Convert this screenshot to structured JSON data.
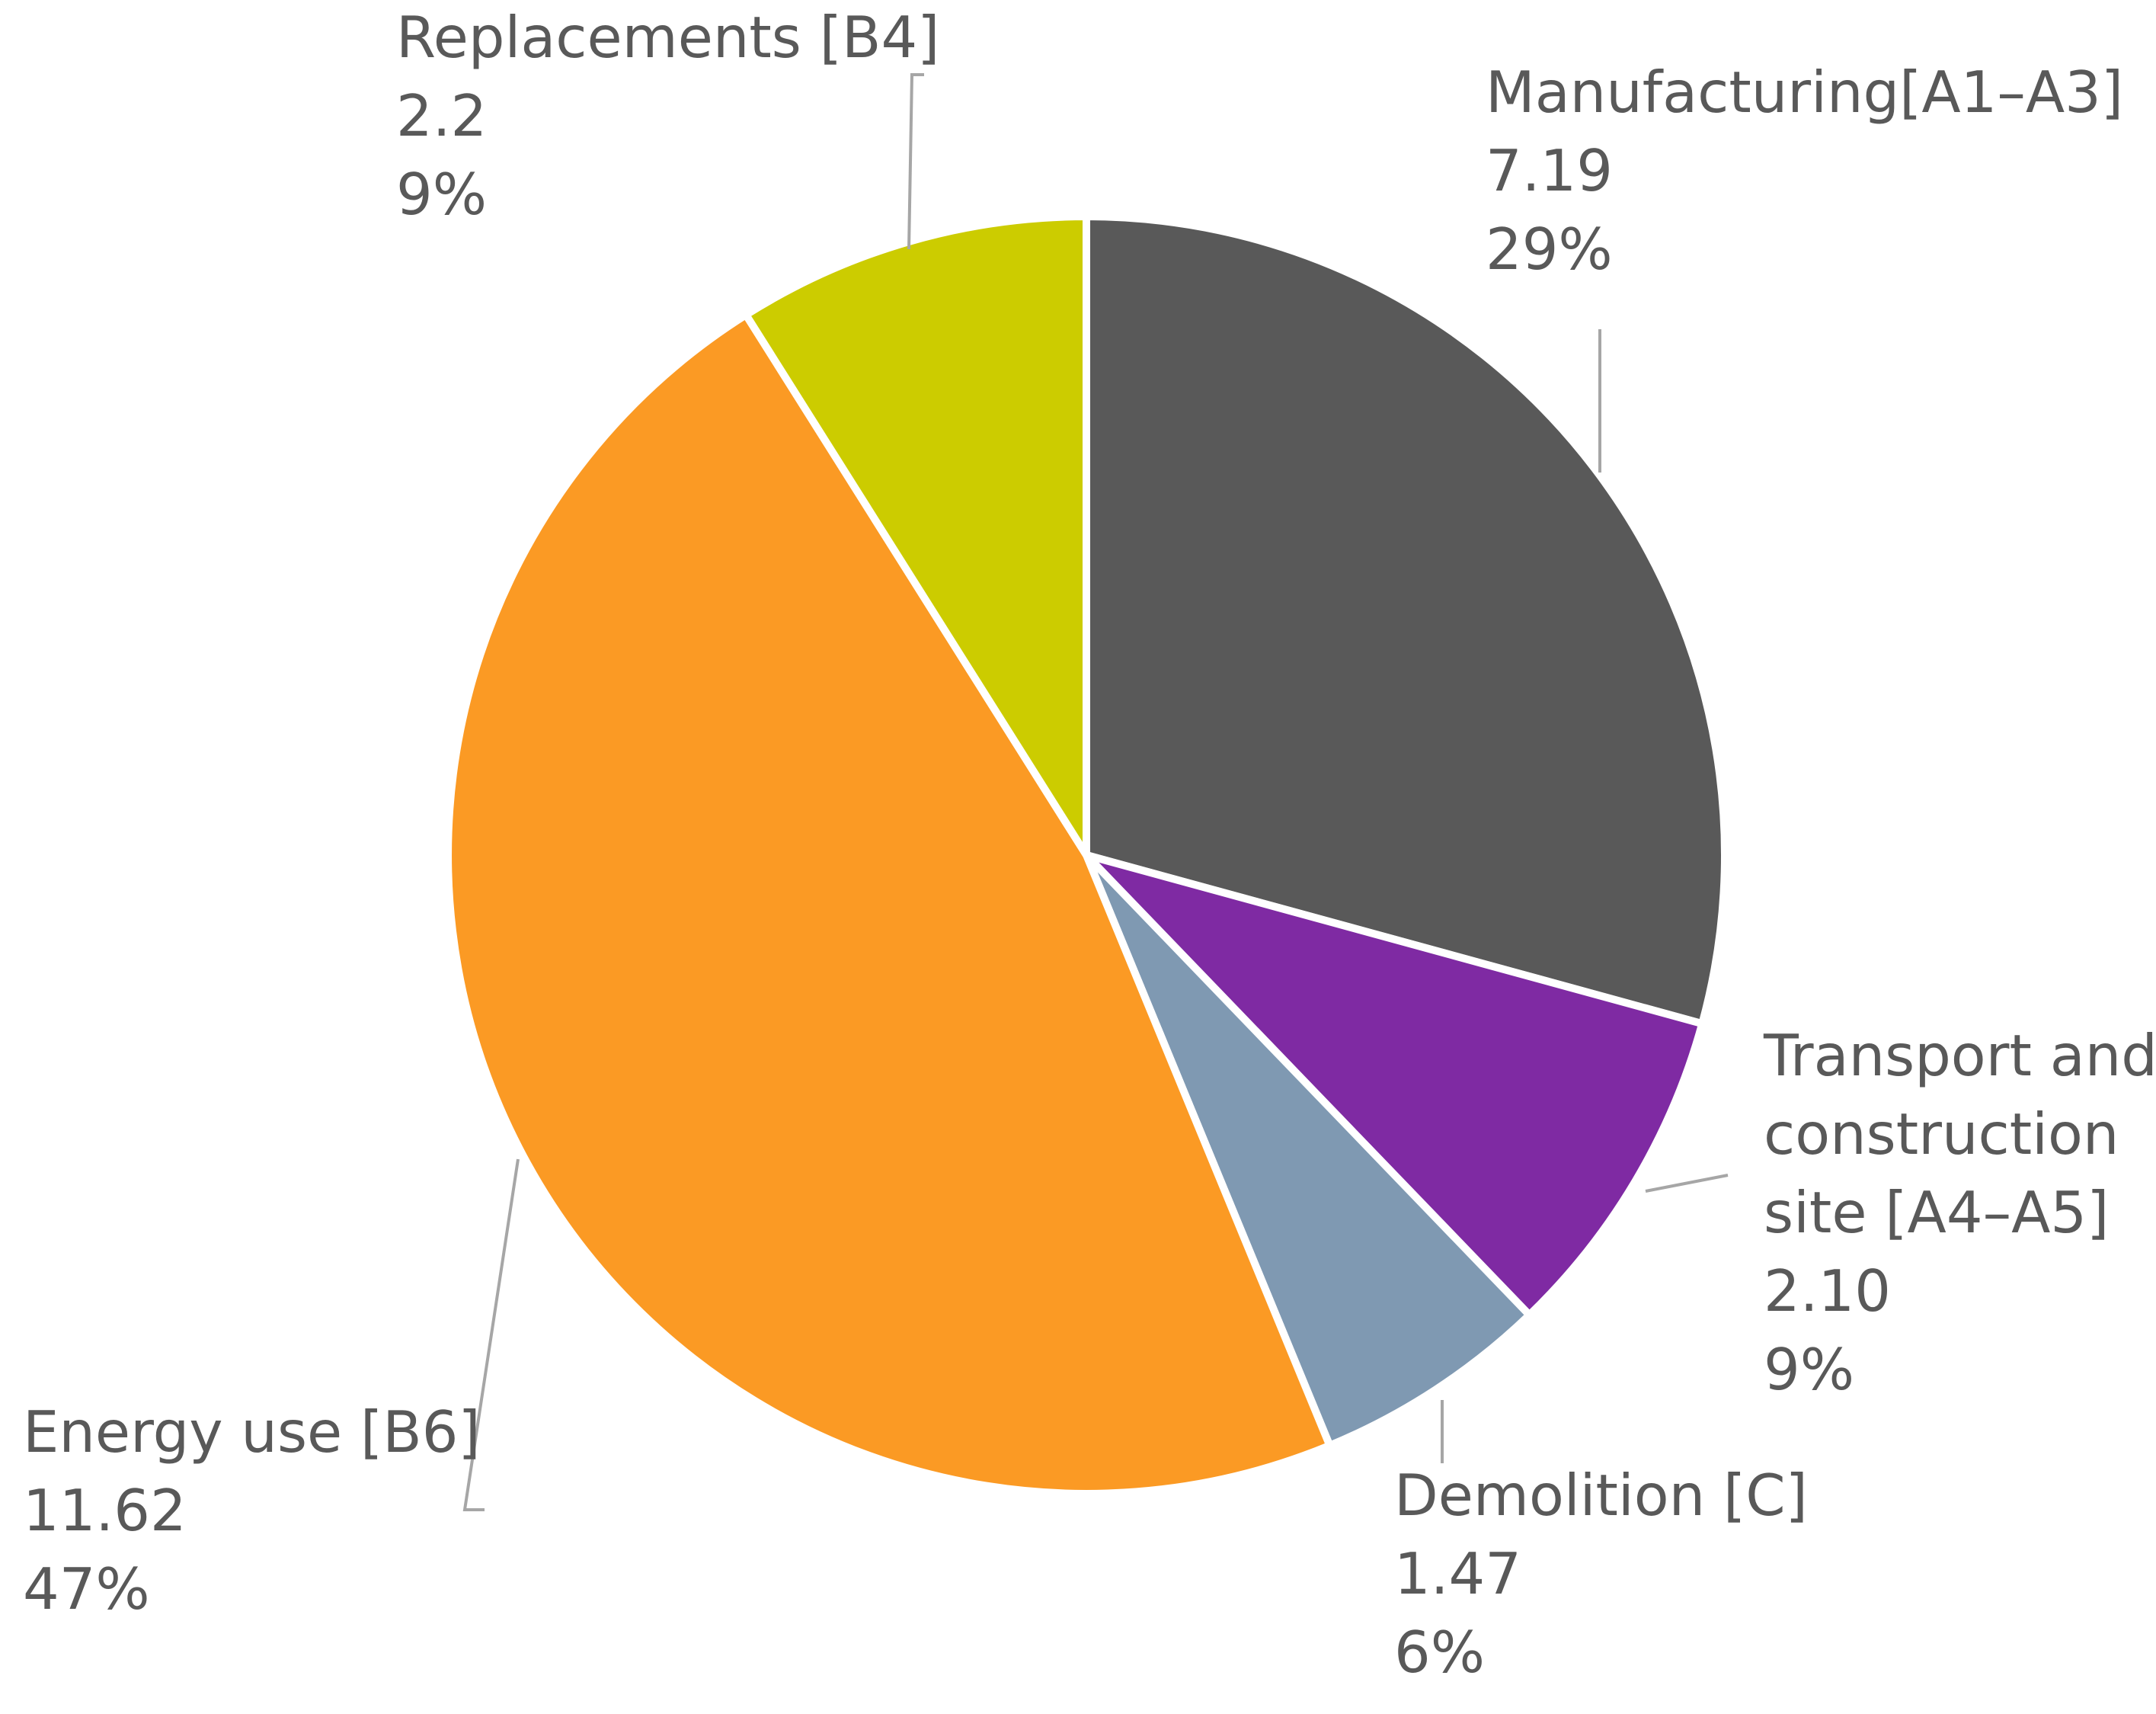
{
  "chart_data": {
    "type": "pie",
    "title": "",
    "start_angle_deg": 0,
    "direction": "clockwise",
    "slices": [
      {
        "name_lines": [
          "Manufacturing[A1–A3]"
        ],
        "value": 7.19,
        "value_label": "7.19",
        "percent_label": "29%",
        "color": "#595959"
      },
      {
        "name_lines": [
          "Transport and",
          "construction",
          "site [A4–A5]"
        ],
        "value": 2.1,
        "value_label": "2.10",
        "percent_label": "9%",
        "color": "#7f2aa3"
      },
      {
        "name_lines": [
          "Demolition [C]"
        ],
        "value": 1.47,
        "value_label": "1.47",
        "percent_label": "6%",
        "color": "#7f99b2"
      },
      {
        "name_lines": [
          "Energy use [B6]"
        ],
        "value": 11.62,
        "value_label": "11.62",
        "percent_label": "47%",
        "color": "#fb9a24"
      },
      {
        "name_lines": [
          "Replacements [B4]"
        ],
        "value": 2.2,
        "value_label": "2.2",
        "percent_label": "9%",
        "color": "#cccc00"
      }
    ]
  }
}
